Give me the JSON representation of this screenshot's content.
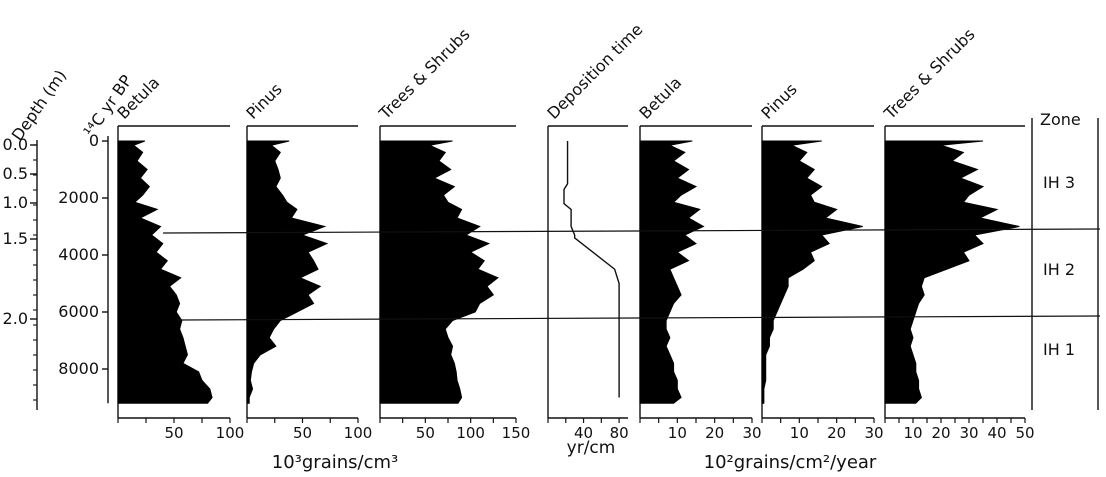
{
  "chart_data": {
    "type": "area",
    "title": "",
    "depth_axis": {
      "label": "Depth (m)",
      "ticks": [
        "0.0",
        "0.5",
        "1.0",
        "1.5",
        "2.0"
      ]
    },
    "age_axis": {
      "label": "¹⁴C yr BP",
      "ticks": [
        "0",
        "2000",
        "4000",
        "6000",
        "8000"
      ],
      "ylim": [
        0,
        9200
      ]
    },
    "unit_labels": {
      "concentration": "10³grains/cm³",
      "influx": "10²grains/cm²/year",
      "deposition": "yr/cm"
    },
    "zone_header": "Zone",
    "zones": [
      {
        "name": "IH 3",
        "from_age": 0,
        "to_age": 3300
      },
      {
        "name": "IH 2",
        "from_age": 3300,
        "to_age": 6300
      },
      {
        "name": "IH 1",
        "from_age": 6300,
        "to_age": 9200
      }
    ],
    "zone_boundaries_age": [
      3300,
      6300
    ],
    "panels": [
      {
        "title": "Betula",
        "group": "concentration",
        "xlim": [
          0,
          100
        ],
        "tick_labels": [
          "50",
          "100"
        ],
        "ages": [
          0,
          150,
          400,
          700,
          1000,
          1300,
          1600,
          1900,
          2150,
          2400,
          2700,
          3000,
          3300,
          3600,
          3900,
          4200,
          4500,
          4800,
          5100,
          5400,
          5700,
          6000,
          6300,
          6600,
          6900,
          7200,
          7500,
          7800,
          8100,
          8400,
          8700,
          9000,
          9200
        ],
        "values": [
          24,
          14,
          22,
          17,
          26,
          20,
          28,
          22,
          15,
          35,
          20,
          38,
          30,
          40,
          34,
          44,
          38,
          56,
          46,
          52,
          55,
          52,
          57,
          55,
          58,
          60,
          62,
          58,
          72,
          75,
          82,
          84,
          80
        ]
      },
      {
        "title": "Pinus",
        "group": "concentration",
        "xlim": [
          0,
          100
        ],
        "tick_labels": [
          "50",
          "100"
        ],
        "ages": [
          0,
          150,
          400,
          700,
          1000,
          1300,
          1600,
          1900,
          2150,
          2400,
          2700,
          3000,
          3300,
          3600,
          3900,
          4200,
          4500,
          4800,
          5100,
          5400,
          5700,
          6000,
          6300,
          6600,
          6900,
          7200,
          7500,
          7800,
          8100,
          8400,
          8700,
          9000,
          9200
        ],
        "values": [
          38,
          22,
          30,
          25,
          28,
          30,
          26,
          32,
          36,
          45,
          40,
          70,
          50,
          72,
          55,
          60,
          64,
          48,
          66,
          55,
          60,
          45,
          30,
          24,
          20,
          26,
          12,
          6,
          4,
          3,
          5,
          2,
          2
        ]
      },
      {
        "title": "Trees & Shrubs",
        "group": "concentration",
        "xlim": [
          0,
          150
        ],
        "tick_labels": [
          "50",
          "100",
          "150"
        ],
        "ages": [
          0,
          150,
          400,
          700,
          1000,
          1300,
          1600,
          1900,
          2150,
          2400,
          2700,
          3000,
          3300,
          3600,
          3900,
          4200,
          4500,
          4800,
          5100,
          5400,
          5700,
          6000,
          6300,
          6600,
          6900,
          7200,
          7500,
          7800,
          8100,
          8400,
          8700,
          9000,
          9200
        ],
        "values": [
          80,
          55,
          72,
          65,
          78,
          60,
          82,
          70,
          75,
          90,
          85,
          110,
          95,
          120,
          100,
          115,
          108,
          130,
          118,
          125,
          110,
          105,
          80,
          72,
          75,
          80,
          78,
          82,
          84,
          85,
          88,
          90,
          86
        ]
      },
      {
        "title": "Deposition time",
        "group": "deposition",
        "xlim": [
          0,
          90
        ],
        "tick_labels": [
          "40",
          "80"
        ],
        "line_only": true,
        "ages": [
          0,
          1500,
          1700,
          2200,
          2400,
          3000,
          3300,
          3400,
          4500,
          5000,
          5200,
          9000
        ],
        "values": [
          22,
          22,
          18,
          18,
          26,
          26,
          30,
          30,
          75,
          80,
          80,
          80
        ]
      },
      {
        "title": "Betula",
        "group": "influx",
        "xlim": [
          0,
          30
        ],
        "tick_labels": [
          "10",
          "20",
          "30"
        ],
        "ages": [
          0,
          150,
          400,
          700,
          1000,
          1300,
          1600,
          1900,
          2150,
          2400,
          2700,
          3000,
          3300,
          3600,
          3900,
          4200,
          4500,
          4800,
          5100,
          5400,
          5700,
          6000,
          6300,
          6600,
          6900,
          7200,
          7500,
          7800,
          8100,
          8400,
          8700,
          9000,
          9200
        ],
        "values": [
          14,
          8,
          12,
          9,
          13,
          10,
          15,
          11,
          9,
          16,
          13,
          17,
          12,
          15,
          10,
          13,
          8,
          9,
          10,
          11,
          9,
          8,
          7,
          7,
          8,
          7,
          8,
          9,
          9,
          10,
          10,
          11,
          9
        ]
      },
      {
        "title": "Pinus",
        "group": "influx",
        "xlim": [
          0,
          30
        ],
        "tick_labels": [
          "10",
          "20",
          "30"
        ],
        "ages": [
          0,
          150,
          400,
          700,
          1000,
          1300,
          1600,
          1900,
          2150,
          2400,
          2700,
          3000,
          3300,
          3600,
          3900,
          4200,
          4500,
          4800,
          5100,
          5400,
          5700,
          6000,
          6300,
          6600,
          6900,
          7200,
          7500,
          7800,
          8100,
          8400,
          8700,
          9000,
          9200
        ],
        "values": [
          16,
          8,
          12,
          10,
          14,
          12,
          16,
          13,
          14,
          20,
          17,
          27,
          16,
          18,
          13,
          14,
          11,
          7,
          7,
          6,
          5,
          4,
          3,
          3,
          2,
          2,
          1,
          1,
          1,
          1,
          0.5,
          0.5,
          0.5
        ]
      },
      {
        "title": "Trees & Shrubs",
        "group": "influx",
        "xlim": [
          0,
          50
        ],
        "tick_labels": [
          "10",
          "20",
          "30",
          "40",
          "50"
        ],
        "ages": [
          0,
          150,
          400,
          700,
          1000,
          1300,
          1600,
          1900,
          2150,
          2400,
          2700,
          3000,
          3300,
          3600,
          3900,
          4200,
          4500,
          4800,
          5100,
          5400,
          5700,
          6000,
          6300,
          6600,
          6900,
          7200,
          7500,
          7800,
          8100,
          8400,
          8700,
          9000,
          9200
        ],
        "values": [
          35,
          20,
          28,
          24,
          33,
          27,
          35,
          30,
          28,
          40,
          34,
          48,
          32,
          35,
          28,
          30,
          22,
          14,
          13,
          14,
          12,
          11,
          10,
          9,
          10,
          9,
          10,
          11,
          11,
          12,
          12,
          13,
          11
        ]
      }
    ]
  }
}
